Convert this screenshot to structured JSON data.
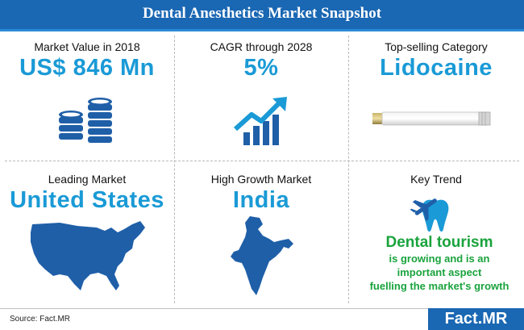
{
  "title": "Dental Anesthetics Market Snapshot",
  "cells": [
    {
      "label": "Market Value in 2018",
      "value": "US$ 846 Mn"
    },
    {
      "label": "CAGR through 2028",
      "value": "5%"
    },
    {
      "label": "Top-selling Category",
      "value": "Lidocaine"
    },
    {
      "label": "Leading Market",
      "value": "United States"
    },
    {
      "label": "High Growth Market",
      "value": "India"
    },
    {
      "label": "Key Trend",
      "value": ""
    }
  ],
  "trend": {
    "headline": "Dental tourism",
    "line1": "is growing and is an",
    "line2": "important aspect",
    "line3": "fuelling the market's growth"
  },
  "footer": {
    "source": "Source: Fact.MR",
    "logo": "Fact.MR"
  },
  "colors": {
    "banner": "#1a67b3",
    "value_blue": "#1a9ad6",
    "icon_blue": "#1f5fa8",
    "trend_green": "#1aa33d"
  }
}
